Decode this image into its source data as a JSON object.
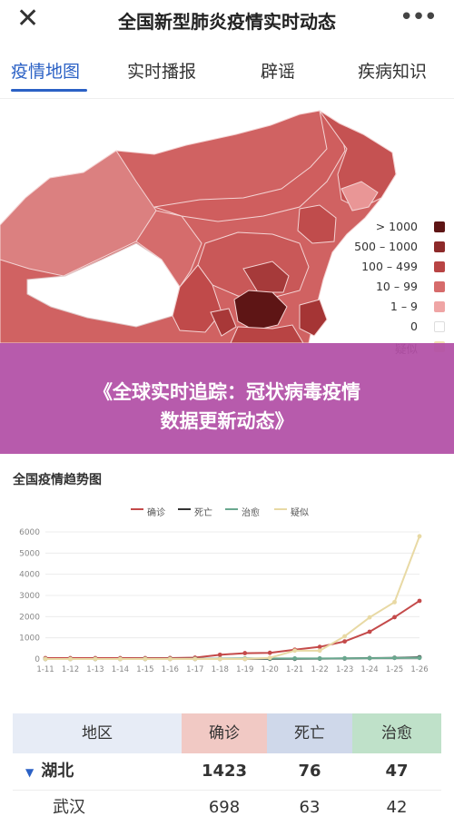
{
  "header": {
    "title": "全国新型肺炎疫情实时动态"
  },
  "tabs": [
    {
      "label": "疫情地图",
      "active": true
    },
    {
      "label": "实时播报",
      "active": false
    },
    {
      "label": "辟谣",
      "active": false
    },
    {
      "label": "疾病知识",
      "active": false
    }
  ],
  "map": {
    "legend": [
      {
        "label": "> 1000",
        "color": "#5e1515"
      },
      {
        "label": "500 – 1000",
        "color": "#8d2a2a"
      },
      {
        "label": "100 – 499",
        "color": "#b84444"
      },
      {
        "label": "10 – 99",
        "color": "#d66b6b"
      },
      {
        "label": "1 – 9",
        "color": "#efa5a5"
      },
      {
        "label": "0",
        "color": "#ffffff"
      },
      {
        "label": "疑似",
        "color": "#f3e3b3"
      }
    ]
  },
  "banner": {
    "line1": "《全球实时追踪：冠状病毒疫情",
    "line2": "数据更新动态》"
  },
  "chart": {
    "title": "全国疫情趋势图"
  },
  "chart_data": {
    "type": "line",
    "title": "全国疫情趋势图",
    "categories": [
      "1-11",
      "1-12",
      "1-13",
      "1-14",
      "1-15",
      "1-16",
      "1-17",
      "1-18",
      "1-19",
      "1-20",
      "1-21",
      "1-22",
      "1-23",
      "1-24",
      "1-25",
      "1-26"
    ],
    "ylim": [
      0,
      6000
    ],
    "yticks": [
      "0",
      "1000",
      "2000",
      "3000",
      "4000",
      "5000",
      "6000"
    ],
    "series": [
      {
        "name": "确诊",
        "color": "#c44a4a",
        "values": [
          41,
          41,
          41,
          41,
          41,
          45,
          62,
          198,
          275,
          291,
          440,
          571,
          830,
          1287,
          1975,
          2744
        ]
      },
      {
        "name": "死亡",
        "color": "#333333",
        "values": [
          1,
          1,
          1,
          1,
          2,
          2,
          2,
          3,
          4,
          6,
          9,
          17,
          25,
          41,
          56,
          80
        ]
      },
      {
        "name": "治愈",
        "color": "#6aa88f",
        "values": [
          0,
          0,
          0,
          0,
          5,
          8,
          12,
          17,
          25,
          25,
          25,
          25,
          34,
          38,
          49,
          51
        ]
      },
      {
        "name": "疑似",
        "color": "#e8d9a4",
        "values": [
          0,
          0,
          0,
          0,
          0,
          0,
          0,
          0,
          0,
          54,
          393,
          393,
          1072,
          1965,
          2684,
          5794
        ]
      }
    ]
  },
  "table": {
    "headers": [
      "地区",
      "确诊",
      "死亡",
      "治愈"
    ],
    "rows": [
      {
        "region": "湖北",
        "confirmed": "1423",
        "deaths": "76",
        "cured": "47",
        "expanded": true
      },
      {
        "region": "武汉",
        "confirmed": "698",
        "deaths": "63",
        "cured": "42"
      }
    ]
  }
}
